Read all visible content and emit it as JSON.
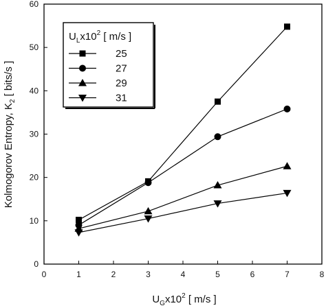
{
  "chart_data": {
    "type": "line",
    "xlabel": {
      "main": "U",
      "sub": "G",
      "mid": "x10",
      "sup": "2",
      "tail": " [ m/s ]"
    },
    "ylabel": {
      "main": "Kolmogorov Entropy, K",
      "sub": "2",
      "tail": " [ bits/s ]"
    },
    "xlim": [
      0,
      8
    ],
    "ylim": [
      0,
      60
    ],
    "xticks": [
      0,
      1,
      2,
      3,
      4,
      5,
      6,
      7,
      8
    ],
    "yticks": [
      0,
      10,
      20,
      30,
      40,
      50,
      60
    ],
    "grid": false,
    "legend": {
      "position": "top-left",
      "title": {
        "main": "U",
        "sub": "L",
        "mid": "x10",
        "sup": "2",
        "tail": " [ m/s ]"
      }
    },
    "x": [
      1,
      3,
      5,
      7
    ],
    "series": [
      {
        "name": "25",
        "marker": "square",
        "values": [
          10.2,
          19.1,
          37.5,
          54.8
        ]
      },
      {
        "name": "27",
        "marker": "circle",
        "values": [
          9.0,
          18.8,
          29.4,
          35.8
        ]
      },
      {
        "name": "29",
        "marker": "triangle-up",
        "values": [
          8.2,
          12.2,
          18.2,
          22.6
        ]
      },
      {
        "name": "31",
        "marker": "triangle-down",
        "values": [
          7.3,
          10.5,
          14.0,
          16.4
        ]
      }
    ],
    "colors": {
      "line": "#000000",
      "marker": "#000000"
    }
  }
}
